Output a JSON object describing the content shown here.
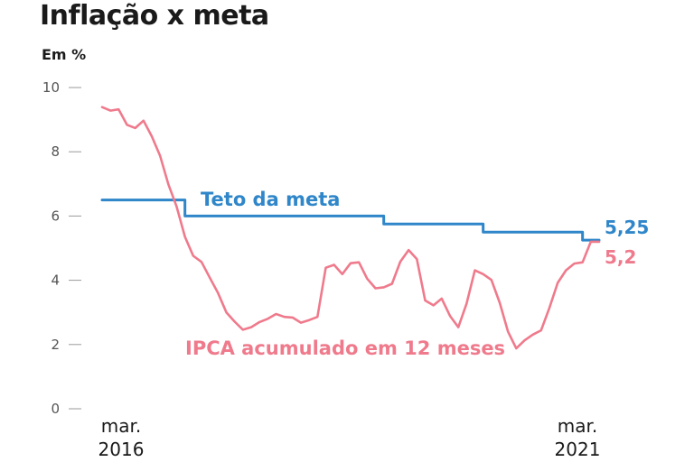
{
  "title": "Inflação x meta",
  "unit": "Em %",
  "chart_data": {
    "type": "line",
    "title": "Inflação x meta",
    "ylabel": "Em %",
    "ylim": [
      0,
      10
    ],
    "y_ticks": [
      "0",
      "2",
      "4",
      "6",
      "8",
      "10"
    ],
    "x_tick_labels": [
      {
        "month": "mar.",
        "year": "2016"
      },
      {
        "month": "mar.",
        "year": "2021"
      }
    ],
    "grid": false,
    "x": [
      "2016-03",
      "2016-04",
      "2016-05",
      "2016-06",
      "2016-07",
      "2016-08",
      "2016-09",
      "2016-10",
      "2016-11",
      "2016-12",
      "2017-01",
      "2017-02",
      "2017-03",
      "2017-04",
      "2017-05",
      "2017-06",
      "2017-07",
      "2017-08",
      "2017-09",
      "2017-10",
      "2017-11",
      "2017-12",
      "2018-01",
      "2018-02",
      "2018-03",
      "2018-04",
      "2018-05",
      "2018-06",
      "2018-07",
      "2018-08",
      "2018-09",
      "2018-10",
      "2018-11",
      "2018-12",
      "2019-01",
      "2019-02",
      "2019-03",
      "2019-04",
      "2019-05",
      "2019-06",
      "2019-07",
      "2019-08",
      "2019-09",
      "2019-10",
      "2019-11",
      "2019-12",
      "2020-01",
      "2020-02",
      "2020-03",
      "2020-04",
      "2020-05",
      "2020-06",
      "2020-07",
      "2020-08",
      "2020-09",
      "2020-10",
      "2020-11",
      "2020-12",
      "2021-01",
      "2021-02",
      "2021-03"
    ],
    "series": [
      {
        "name": "Teto da meta",
        "color": "#2f86c9",
        "end_label": "5,25",
        "values": [
          6.5,
          6.5,
          6.5,
          6.5,
          6.5,
          6.5,
          6.5,
          6.5,
          6.5,
          6.5,
          6.0,
          6.0,
          6.0,
          6.0,
          6.0,
          6.0,
          6.0,
          6.0,
          6.0,
          6.0,
          6.0,
          6.0,
          6.0,
          6.0,
          6.0,
          6.0,
          6.0,
          6.0,
          6.0,
          6.0,
          6.0,
          6.0,
          6.0,
          6.0,
          5.75,
          5.75,
          5.75,
          5.75,
          5.75,
          5.75,
          5.75,
          5.75,
          5.75,
          5.75,
          5.75,
          5.75,
          5.5,
          5.5,
          5.5,
          5.5,
          5.5,
          5.5,
          5.5,
          5.5,
          5.5,
          5.5,
          5.5,
          5.5,
          5.25,
          5.25,
          5.25
        ]
      },
      {
        "name": "IPCA acumulado em 12 meses",
        "color": "#ef7a8c",
        "end_label": "5,2",
        "values": [
          9.39,
          9.28,
          9.32,
          8.84,
          8.74,
          8.97,
          8.48,
          7.87,
          6.99,
          6.29,
          5.35,
          4.76,
          4.57,
          4.08,
          3.6,
          3.0,
          2.71,
          2.46,
          2.54,
          2.7,
          2.8,
          2.95,
          2.86,
          2.84,
          2.68,
          2.76,
          2.86,
          4.39,
          4.48,
          4.19,
          4.53,
          4.56,
          4.05,
          3.75,
          3.78,
          3.89,
          4.58,
          4.94,
          4.66,
          3.37,
          3.22,
          3.43,
          2.89,
          2.54,
          3.27,
          4.31,
          4.19,
          4.01,
          3.3,
          2.4,
          1.88,
          2.13,
          2.31,
          2.44,
          3.14,
          3.92,
          4.31,
          4.52,
          4.56,
          5.2,
          5.2
        ]
      }
    ]
  }
}
